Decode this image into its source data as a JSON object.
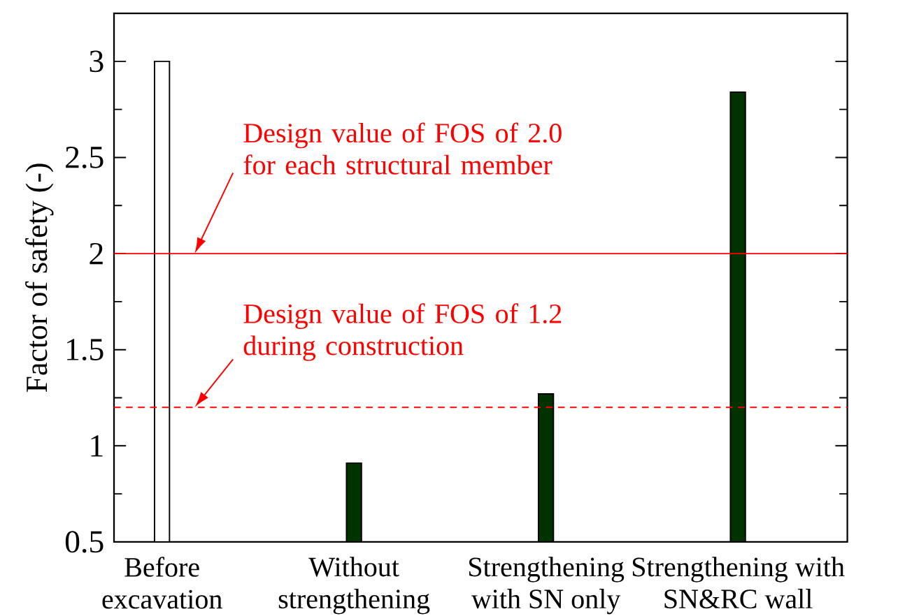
{
  "chart_data": {
    "type": "bar",
    "ylabel": "Factor of safety (-)",
    "categories": [
      "Before excavation",
      "Without strengthening",
      "Strengthening with SN only",
      "Strengthening with SN&RC wall"
    ],
    "values": [
      3.0,
      0.91,
      1.27,
      2.84
    ],
    "colors": [
      "#ffffff",
      "#003300",
      "#003300",
      "#003300"
    ],
    "ylim": [
      0.5,
      3.25
    ],
    "yticks": [
      0.5,
      1,
      1.5,
      2,
      2.5,
      3
    ],
    "ref_lines": [
      {
        "axis": "y",
        "value": 2.0,
        "label": "Design value of FOS of 2.0 for each structural member",
        "color": "#ff0000",
        "line_style": "solid"
      },
      {
        "axis": "y",
        "value": 1.2,
        "label": "Design value of FOS of 1.2 during construction",
        "color": "#ff0000",
        "line_style": "dashed"
      }
    ]
  }
}
